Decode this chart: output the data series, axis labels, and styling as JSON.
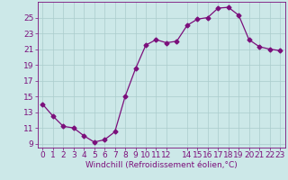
{
  "x": [
    0,
    1,
    2,
    3,
    4,
    5,
    6,
    7,
    8,
    9,
    10,
    11,
    12,
    13,
    14,
    15,
    16,
    17,
    18,
    19,
    20,
    21,
    22,
    23
  ],
  "y": [
    14.0,
    12.5,
    11.2,
    11.0,
    10.0,
    9.2,
    9.5,
    10.5,
    15.0,
    18.5,
    21.5,
    22.2,
    21.8,
    22.0,
    24.0,
    24.8,
    25.0,
    26.2,
    26.3,
    25.3,
    22.2,
    21.3,
    21.0,
    20.8
  ],
  "line_color": "#7b0f7b",
  "marker": "D",
  "marker_size": 2.5,
  "bg_color": "#cce8e8",
  "grid_color": "#aacccc",
  "xlabel": "Windchill (Refroidissement éolien,°C)",
  "xlabel_fontsize": 6.5,
  "tick_fontsize": 6.5,
  "xlim": [
    -0.5,
    23.5
  ],
  "ylim": [
    8.5,
    27.0
  ],
  "yticks": [
    9,
    11,
    13,
    15,
    17,
    19,
    21,
    23,
    25
  ],
  "xticks": [
    0,
    1,
    2,
    3,
    4,
    5,
    6,
    7,
    8,
    9,
    10,
    11,
    12,
    14,
    15,
    16,
    17,
    18,
    19,
    20,
    21,
    22,
    23
  ]
}
